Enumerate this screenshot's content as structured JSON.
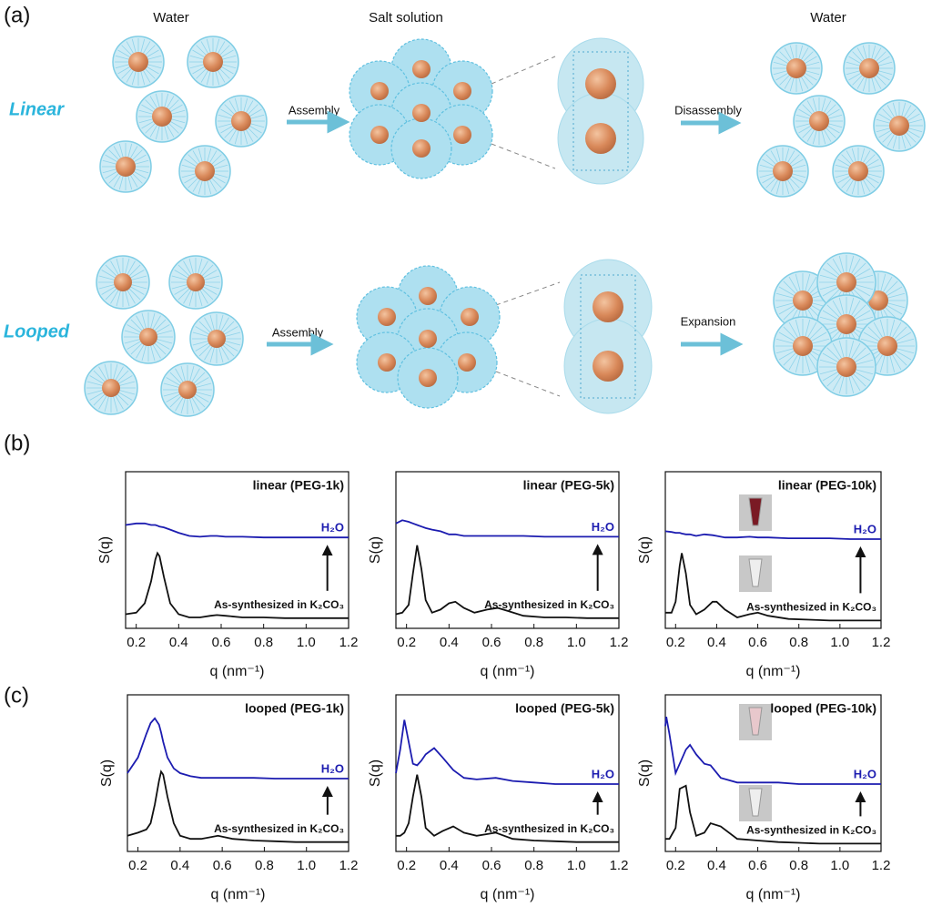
{
  "panels": [
    "(a)",
    "(b)",
    "(c)"
  ],
  "diagram": {
    "column_labels": [
      "Water",
      "Salt solution",
      "Water"
    ],
    "row_labels": [
      "Linear",
      "Looped"
    ],
    "arrows": [
      "Assembly",
      "Disassembly",
      "Assembly",
      "Expansion"
    ]
  },
  "chart_data": [
    {
      "type": "line",
      "title": "linear (PEG-1k)",
      "xlabel": "q (nm⁻¹)",
      "ylabel": "S(q)",
      "xlim": [
        0.15,
        1.2
      ],
      "ylim": [
        0,
        1
      ],
      "xticks": [
        0.2,
        0.4,
        0.6,
        0.8,
        {
          "value": 1,
          "label": "1.0"
        },
        1.2
      ],
      "x": [
        0.15,
        0.2,
        0.24,
        0.27,
        0.29,
        0.3,
        0.31,
        0.33,
        0.36,
        0.4,
        0.45,
        0.5,
        0.55,
        0.58,
        0.62,
        0.7,
        0.8,
        0.9,
        1.0,
        1.1,
        1.2
      ],
      "series": [
        {
          "name": "H₂O",
          "color": "#1c1cb0",
          "values": [
            0.66,
            0.67,
            0.67,
            0.66,
            0.66,
            0.655,
            0.65,
            0.645,
            0.63,
            0.61,
            0.59,
            0.585,
            0.59,
            0.59,
            0.585,
            0.585,
            0.58,
            0.58,
            0.58,
            0.58,
            0.58
          ]
        },
        {
          "name": "As-synthesized in K₂CO₃",
          "color": "#111111",
          "values": [
            0.09,
            0.1,
            0.16,
            0.3,
            0.44,
            0.48,
            0.46,
            0.33,
            0.16,
            0.09,
            0.07,
            0.07,
            0.08,
            0.085,
            0.08,
            0.07,
            0.07,
            0.065,
            0.065,
            0.065,
            0.065
          ]
        }
      ]
    },
    {
      "type": "line",
      "title": "linear (PEG-5k)",
      "xlabel": "q (nm⁻¹)",
      "ylabel": "S(q)",
      "xlim": [
        0.15,
        1.2
      ],
      "ylim": [
        0,
        1
      ],
      "xticks": [
        0.2,
        0.4,
        0.6,
        0.8,
        {
          "value": 1,
          "label": "1.0"
        },
        1.2
      ],
      "x": [
        0.15,
        0.18,
        0.21,
        0.23,
        0.25,
        0.27,
        0.29,
        0.32,
        0.36,
        0.4,
        0.43,
        0.47,
        0.52,
        0.58,
        0.63,
        0.68,
        0.75,
        0.85,
        0.95,
        1.05,
        1.2
      ],
      "series": [
        {
          "name": "H₂O",
          "color": "#1c1cb0",
          "values": [
            0.67,
            0.69,
            0.68,
            0.67,
            0.66,
            0.65,
            0.64,
            0.63,
            0.62,
            0.6,
            0.6,
            0.59,
            0.59,
            0.59,
            0.59,
            0.59,
            0.59,
            0.585,
            0.585,
            0.585,
            0.585
          ]
        },
        {
          "name": "As-synthesized in K₂CO₃",
          "color": "#111111",
          "values": [
            0.09,
            0.1,
            0.15,
            0.35,
            0.53,
            0.38,
            0.18,
            0.1,
            0.12,
            0.16,
            0.17,
            0.13,
            0.1,
            0.12,
            0.13,
            0.11,
            0.08,
            0.07,
            0.07,
            0.065,
            0.065
          ]
        }
      ]
    },
    {
      "type": "line",
      "title": "linear (PEG-10k)",
      "xlabel": "q (nm⁻¹)",
      "ylabel": "S(q)",
      "xlim": [
        0.15,
        1.2
      ],
      "ylim": [
        0,
        1
      ],
      "xticks": [
        0.2,
        0.4,
        0.6,
        0.8,
        {
          "value": 1,
          "label": "1.0"
        },
        1.2
      ],
      "x": [
        0.15,
        0.18,
        0.2,
        0.22,
        0.23,
        0.25,
        0.27,
        0.3,
        0.34,
        0.38,
        0.4,
        0.44,
        0.5,
        0.56,
        0.6,
        0.65,
        0.75,
        0.85,
        0.95,
        1.05,
        1.2
      ],
      "series": [
        {
          "name": "H₂O",
          "color": "#1c1cb0",
          "values": [
            0.62,
            0.615,
            0.61,
            0.61,
            0.605,
            0.6,
            0.6,
            0.59,
            0.6,
            0.595,
            0.59,
            0.58,
            0.58,
            0.585,
            0.58,
            0.58,
            0.575,
            0.575,
            0.575,
            0.57,
            0.57
          ]
        },
        {
          "name": "As-synthesized in K₂CO₃",
          "color": "#111111",
          "values": [
            0.1,
            0.1,
            0.17,
            0.4,
            0.48,
            0.35,
            0.15,
            0.09,
            0.12,
            0.17,
            0.17,
            0.12,
            0.07,
            0.09,
            0.1,
            0.08,
            0.06,
            0.055,
            0.05,
            0.05,
            0.05
          ]
        }
      ]
    },
    {
      "type": "line",
      "title": "looped (PEG-1k)",
      "xlabel": "q (nm⁻¹)",
      "ylabel": "S(q)",
      "xlim": [
        0.15,
        1.2
      ],
      "ylim": [
        0,
        1
      ],
      "xticks": [
        0.2,
        0.4,
        0.6,
        0.8,
        {
          "value": 1,
          "label": "1.0"
        },
        1.2
      ],
      "x": [
        0.15,
        0.2,
        0.24,
        0.26,
        0.28,
        0.3,
        0.31,
        0.32,
        0.34,
        0.37,
        0.4,
        0.45,
        0.5,
        0.58,
        0.65,
        0.75,
        0.85,
        0.95,
        1.05,
        1.2
      ],
      "series": [
        {
          "name": "H₂O",
          "color": "#1c1cb0",
          "values": [
            0.5,
            0.6,
            0.75,
            0.82,
            0.85,
            0.81,
            0.76,
            0.7,
            0.6,
            0.53,
            0.5,
            0.48,
            0.47,
            0.47,
            0.47,
            0.47,
            0.465,
            0.465,
            0.465,
            0.465
          ]
        },
        {
          "name": "As-synthesized in K₂CO₃",
          "color": "#111111",
          "values": [
            0.1,
            0.12,
            0.14,
            0.18,
            0.3,
            0.45,
            0.51,
            0.49,
            0.35,
            0.18,
            0.1,
            0.08,
            0.08,
            0.1,
            0.08,
            0.07,
            0.065,
            0.06,
            0.06,
            0.06
          ]
        }
      ]
    },
    {
      "type": "line",
      "title": "looped (PEG-5k)",
      "xlabel": "q (nm⁻¹)",
      "ylabel": "S(q)",
      "xlim": [
        0.15,
        1.2
      ],
      "ylim": [
        0,
        1
      ],
      "xticks": [
        0.2,
        0.4,
        0.6,
        0.8,
        {
          "value": 1,
          "label": "1.0"
        },
        1.2
      ],
      "x": [
        0.15,
        0.17,
        0.19,
        0.21,
        0.23,
        0.25,
        0.27,
        0.29,
        0.33,
        0.37,
        0.42,
        0.47,
        0.53,
        0.62,
        0.7,
        0.8,
        0.9,
        1.0,
        1.1,
        1.2
      ],
      "series": [
        {
          "name": "H₂O",
          "color": "#1c1cb0",
          "values": [
            0.5,
            0.65,
            0.84,
            0.7,
            0.56,
            0.55,
            0.58,
            0.62,
            0.66,
            0.6,
            0.52,
            0.47,
            0.46,
            0.47,
            0.45,
            0.44,
            0.43,
            0.43,
            0.43,
            0.43
          ]
        },
        {
          "name": "As-synthesized in K₂CO₃",
          "color": "#111111",
          "values": [
            0.1,
            0.1,
            0.12,
            0.18,
            0.35,
            0.49,
            0.35,
            0.15,
            0.1,
            0.13,
            0.16,
            0.12,
            0.1,
            0.12,
            0.08,
            0.07,
            0.065,
            0.06,
            0.06,
            0.06
          ]
        }
      ]
    },
    {
      "type": "line",
      "title": "looped (PEG-10k)",
      "xlabel": "q (nm⁻¹)",
      "ylabel": "S(q)",
      "xlim": [
        0.15,
        1.2
      ],
      "ylim": [
        0,
        1
      ],
      "xticks": [
        0.2,
        0.4,
        0.6,
        0.8,
        {
          "value": 1,
          "label": "1.0"
        },
        1.2
      ],
      "x": [
        0.15,
        0.155,
        0.17,
        0.2,
        0.22,
        0.25,
        0.27,
        0.3,
        0.34,
        0.37,
        0.42,
        0.5,
        0.6,
        0.7,
        0.8,
        0.9,
        1.0,
        1.1,
        1.2
      ],
      "series": [
        {
          "name": "H₂O",
          "color": "#1c1cb0",
          "values": [
            0.8,
            0.86,
            0.75,
            0.5,
            0.56,
            0.65,
            0.68,
            0.62,
            0.56,
            0.55,
            0.47,
            0.44,
            0.44,
            0.44,
            0.43,
            0.43,
            0.43,
            0.43,
            0.43
          ]
        },
        {
          "name": "As-synthesized in K₂CO₃",
          "color": "#111111",
          "values": [
            0.08,
            0.08,
            0.08,
            0.15,
            0.4,
            0.42,
            0.25,
            0.1,
            0.12,
            0.18,
            0.16,
            0.08,
            0.07,
            0.06,
            0.055,
            0.05,
            0.05,
            0.05,
            0.05
          ]
        }
      ]
    }
  ]
}
